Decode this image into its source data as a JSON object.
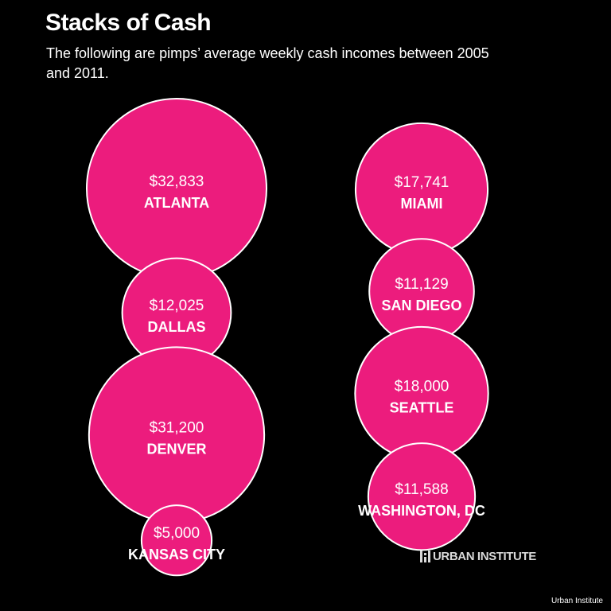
{
  "header": {
    "title": "Stacks of Cash",
    "subtitle": "The following are pimps’ average weekly cash incomes between 2005 and 2011."
  },
  "colors": {
    "background": "#000000",
    "bubble_fill": "#ec1c7d",
    "bubble_stroke": "#ffffff",
    "text": "#ffffff"
  },
  "chart_data": {
    "type": "bubble",
    "title": "Stacks of Cash",
    "subtitle": "The following are pimps’ average weekly cash incomes between 2005 and 2011.",
    "value_unit": "USD per week",
    "columns": [
      {
        "items": [
          {
            "city": "ATLANTA",
            "value": 32833,
            "label": "$32,833"
          },
          {
            "city": "DALLAS",
            "value": 12025,
            "label": "$12,025"
          },
          {
            "city": "DENVER",
            "value": 31200,
            "label": "$31,200"
          },
          {
            "city": "KANSAS CITY",
            "value": 5000,
            "label": "$5,000"
          }
        ]
      },
      {
        "items": [
          {
            "city": "MIAMI",
            "value": 17741,
            "label": "$17,741"
          },
          {
            "city": "SAN DIEGO",
            "value": 11129,
            "label": "$11,129"
          },
          {
            "city": "SEATTLE",
            "value": 18000,
            "label": "$18,000"
          },
          {
            "city": "WASHINGTON, DC",
            "value": 11588,
            "label": "$11,588"
          }
        ]
      }
    ]
  },
  "footer": {
    "logo_text": "URBAN INSTITUTE",
    "credit": "Urban Institute"
  }
}
